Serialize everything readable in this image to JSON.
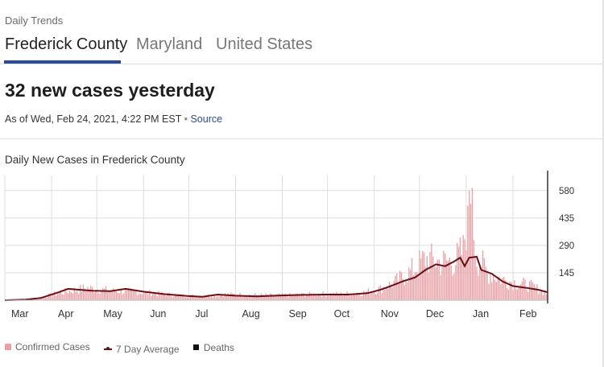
{
  "header": {
    "section_label": "Daily Trends"
  },
  "tabs": [
    {
      "label": "Frederick County",
      "active": true
    },
    {
      "label": "Maryland",
      "active": false
    },
    {
      "label": "United States",
      "active": false
    }
  ],
  "summary": {
    "headline": "32 new cases yesterday",
    "as_of": "As of Wed, Feb 24, 2021, 4:22 PM EST",
    "separator": "•",
    "source_label": "Source"
  },
  "colors": {
    "bars": "#e8a0a6",
    "average_line": "#6b0f14",
    "deaths": "#111111",
    "tab_accent": "#2a4b9b"
  },
  "chart_data": {
    "type": "bar",
    "title": "Daily New Cases in Frederick County",
    "x_axis": {
      "type": "date",
      "range": [
        "2020-03-01",
        "2021-02-24"
      ],
      "tick_labels": [
        "Mar",
        "Apr",
        "May",
        "Jun",
        "Jul",
        "Aug",
        "Sep",
        "Oct",
        "Nov",
        "Dec",
        "Jan",
        "Feb"
      ]
    },
    "y_axis": {
      "position": "right",
      "ticks": [
        145,
        290,
        435,
        580
      ],
      "range": [
        0,
        660
      ]
    },
    "grid": true,
    "legend": {
      "position": "bottom-left",
      "entries": [
        "Confirmed Cases",
        "7 Day Average",
        "Deaths"
      ]
    },
    "series": [
      {
        "name": "Confirmed Cases",
        "kind": "bars",
        "description_points": [
          [
            "2020-03-10",
            0
          ],
          [
            "2020-03-25",
            15
          ],
          [
            "2020-04-10",
            45
          ],
          [
            "2020-04-25",
            65
          ],
          [
            "2020-05-10",
            50
          ],
          [
            "2020-05-25",
            45
          ],
          [
            "2020-06-10",
            35
          ],
          [
            "2020-06-25",
            25
          ],
          [
            "2020-07-10",
            22
          ],
          [
            "2020-07-25",
            30
          ],
          [
            "2020-08-10",
            28
          ],
          [
            "2020-08-25",
            25
          ],
          [
            "2020-09-10",
            28
          ],
          [
            "2020-09-25",
            33
          ],
          [
            "2020-10-10",
            32
          ],
          [
            "2020-10-25",
            40
          ],
          [
            "2020-11-05",
            60
          ],
          [
            "2020-11-15",
            95
          ],
          [
            "2020-11-25",
            150
          ],
          [
            "2020-12-05",
            220
          ],
          [
            "2020-12-15",
            200
          ],
          [
            "2020-12-25",
            210
          ],
          [
            "2020-12-30",
            260
          ],
          [
            "2021-01-03",
            580
          ],
          [
            "2021-01-08",
            230
          ],
          [
            "2021-01-15",
            150
          ],
          [
            "2021-01-25",
            110
          ],
          [
            "2021-02-05",
            90
          ],
          [
            "2021-02-15",
            70
          ],
          [
            "2021-02-24",
            32
          ]
        ]
      },
      {
        "name": "7 Day Average",
        "kind": "line",
        "points": [
          [
            "2020-03-01",
            0
          ],
          [
            "2020-03-15",
            3
          ],
          [
            "2020-03-25",
            12
          ],
          [
            "2020-04-05",
            40
          ],
          [
            "2020-04-12",
            60
          ],
          [
            "2020-04-20",
            55
          ],
          [
            "2020-04-28",
            50
          ],
          [
            "2020-05-10",
            48
          ],
          [
            "2020-05-20",
            60
          ],
          [
            "2020-06-01",
            45
          ],
          [
            "2020-06-15",
            32
          ],
          [
            "2020-06-30",
            22
          ],
          [
            "2020-07-10",
            18
          ],
          [
            "2020-07-20",
            30
          ],
          [
            "2020-08-01",
            24
          ],
          [
            "2020-08-15",
            20
          ],
          [
            "2020-08-31",
            25
          ],
          [
            "2020-09-15",
            28
          ],
          [
            "2020-09-30",
            30
          ],
          [
            "2020-10-15",
            30
          ],
          [
            "2020-10-28",
            38
          ],
          [
            "2020-11-05",
            55
          ],
          [
            "2020-11-12",
            75
          ],
          [
            "2020-11-20",
            100
          ],
          [
            "2020-11-28",
            120
          ],
          [
            "2020-12-05",
            160
          ],
          [
            "2020-12-12",
            190
          ],
          [
            "2020-12-18",
            180
          ],
          [
            "2020-12-24",
            205
          ],
          [
            "2020-12-28",
            225
          ],
          [
            "2020-12-31",
            180
          ],
          [
            "2021-01-03",
            225
          ],
          [
            "2021-01-08",
            230
          ],
          [
            "2021-01-11",
            160
          ],
          [
            "2021-01-18",
            140
          ],
          [
            "2021-01-25",
            100
          ],
          [
            "2021-02-01",
            75
          ],
          [
            "2021-02-10",
            65
          ],
          [
            "2021-02-18",
            55
          ],
          [
            "2021-02-24",
            42
          ]
        ]
      },
      {
        "name": "Deaths",
        "kind": "bars",
        "values": []
      }
    ]
  }
}
